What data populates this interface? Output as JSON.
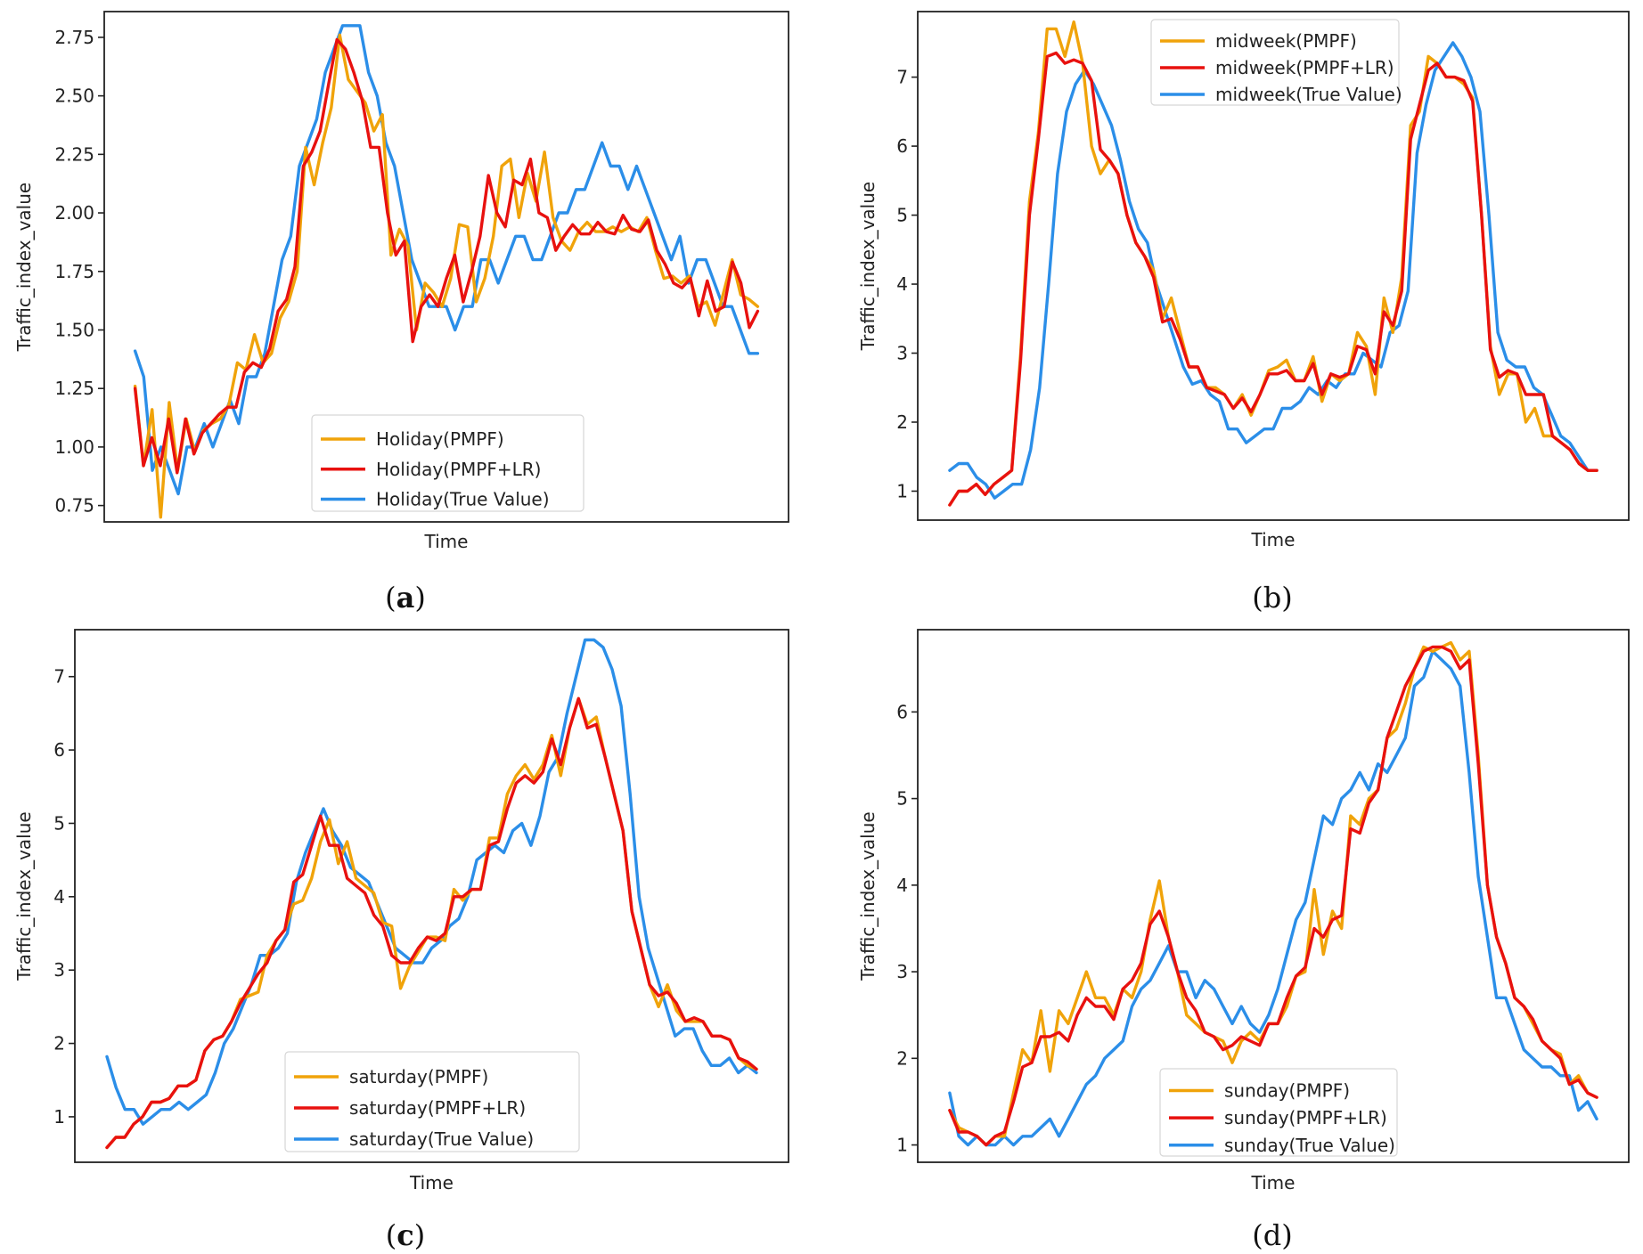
{
  "chart_data": [
    {
      "type": "line",
      "panel": "a",
      "caption": "(a)",
      "caption_letter": "a",
      "caption_bold": true,
      "xlabel": "Time",
      "ylabel": "Traffic_index_value",
      "ylim": [
        0.68,
        2.86
      ],
      "yticks": [
        0.75,
        1.0,
        1.25,
        1.5,
        1.75,
        2.0,
        2.25,
        2.5,
        2.75
      ],
      "ytick_labels": [
        "0.75",
        "1.00",
        "1.25",
        "1.50",
        "1.75",
        "2.00",
        "2.25",
        "2.50",
        "2.75"
      ],
      "legend_position": "lower-center",
      "series": [
        {
          "name": "Holiday(PMPF)",
          "color": "#f0a30a",
          "values": [
            1.26,
            0.92,
            1.16,
            0.7,
            1.19,
            0.9,
            1.12,
            0.98,
            1.07,
            1.1,
            1.12,
            1.18,
            1.36,
            1.33,
            1.48,
            1.36,
            1.4,
            1.55,
            1.62,
            1.75,
            2.28,
            2.12,
            2.3,
            2.45,
            2.76,
            2.57,
            2.52,
            2.47,
            2.35,
            2.42,
            1.82,
            1.93,
            1.86,
            1.5,
            1.7,
            1.66,
            1.6,
            1.72,
            1.95,
            1.94,
            1.62,
            1.72,
            1.9,
            2.2,
            2.23,
            1.98,
            2.17,
            2.05,
            2.26,
            1.98,
            1.88,
            1.84,
            1.92,
            1.96,
            1.92,
            1.92,
            1.94,
            1.92,
            1.94,
            1.92,
            1.98,
            1.84,
            1.72,
            1.73,
            1.7,
            1.73,
            1.6,
            1.62,
            1.52,
            1.66,
            1.8,
            1.65,
            1.63,
            1.6
          ]
        },
        {
          "name": "Holiday(PMPF+LR)",
          "color": "#e8110f",
          "values": [
            1.25,
            0.92,
            1.04,
            0.92,
            1.12,
            0.89,
            1.12,
            0.97,
            1.06,
            1.1,
            1.14,
            1.17,
            1.17,
            1.32,
            1.36,
            1.34,
            1.42,
            1.58,
            1.63,
            1.77,
            2.2,
            2.26,
            2.35,
            2.55,
            2.74,
            2.7,
            2.6,
            2.48,
            2.28,
            2.28,
            2.0,
            1.82,
            1.88,
            1.45,
            1.6,
            1.65,
            1.6,
            1.72,
            1.82,
            1.62,
            1.75,
            1.9,
            2.16,
            2.0,
            1.94,
            2.14,
            2.12,
            2.23,
            2.0,
            1.98,
            1.84,
            1.9,
            1.95,
            1.91,
            1.91,
            1.96,
            1.92,
            1.91,
            1.99,
            1.93,
            1.92,
            1.97,
            1.84,
            1.78,
            1.7,
            1.68,
            1.72,
            1.56,
            1.71,
            1.58,
            1.6,
            1.79,
            1.7,
            1.51,
            1.58
          ]
        },
        {
          "name": "Holiday(True Value)",
          "color": "#2b8ee8",
          "values": [
            1.41,
            1.3,
            0.9,
            1.0,
            0.9,
            0.8,
            1.0,
            1.0,
            1.1,
            1.0,
            1.1,
            1.2,
            1.1,
            1.3,
            1.3,
            1.4,
            1.6,
            1.8,
            1.9,
            2.2,
            2.3,
            2.4,
            2.6,
            2.7,
            2.8,
            2.8,
            2.8,
            2.6,
            2.5,
            2.3,
            2.2,
            2.0,
            1.8,
            1.7,
            1.6,
            1.6,
            1.6,
            1.5,
            1.6,
            1.6,
            1.8,
            1.8,
            1.7,
            1.8,
            1.9,
            1.9,
            1.8,
            1.8,
            1.9,
            2.0,
            2.0,
            2.1,
            2.1,
            2.2,
            2.3,
            2.2,
            2.2,
            2.1,
            2.2,
            2.1,
            2.0,
            1.9,
            1.8,
            1.9,
            1.7,
            1.8,
            1.8,
            1.7,
            1.6,
            1.6,
            1.5,
            1.4,
            1.4
          ]
        }
      ]
    },
    {
      "type": "line",
      "panel": "b",
      "caption": "(b)",
      "caption_letter": "b",
      "caption_bold": false,
      "xlabel": "Time",
      "ylabel": "Traffic_index_value",
      "ylim": [
        0.58,
        7.95
      ],
      "yticks": [
        1,
        2,
        3,
        4,
        5,
        6,
        7
      ],
      "ytick_labels": [
        "1",
        "2",
        "3",
        "4",
        "5",
        "6",
        "7"
      ],
      "legend_position": "upper-center",
      "series": [
        {
          "name": "midweek(PMPF)",
          "color": "#f0a30a",
          "values": [
            0.8,
            1.0,
            1.0,
            1.1,
            0.95,
            1.1,
            1.2,
            1.3,
            3.0,
            5.2,
            6.2,
            7.7,
            7.7,
            7.3,
            7.8,
            7.2,
            6.0,
            5.6,
            5.8,
            5.6,
            5.0,
            4.6,
            4.4,
            4.2,
            3.5,
            3.8,
            3.3,
            2.8,
            2.8,
            2.5,
            2.5,
            2.4,
            2.2,
            2.4,
            2.1,
            2.4,
            2.75,
            2.8,
            2.9,
            2.6,
            2.6,
            2.95,
            2.3,
            2.7,
            2.6,
            2.7,
            3.3,
            3.1,
            2.4,
            3.8,
            3.3,
            4.1,
            6.3,
            6.5,
            7.3,
            7.2,
            7.0,
            7.0,
            6.9,
            6.7,
            5.0,
            3.1,
            2.4,
            2.7,
            2.7,
            2.0,
            2.2,
            1.8,
            1.8,
            1.7,
            1.6,
            1.4,
            1.3,
            1.3
          ]
        },
        {
          "name": "midweek(PMPF+LR)",
          "color": "#e8110f",
          "values": [
            0.8,
            1.0,
            1.0,
            1.1,
            0.95,
            1.1,
            1.2,
            1.3,
            2.9,
            5.0,
            6.1,
            7.3,
            7.35,
            7.2,
            7.25,
            7.2,
            6.95,
            5.95,
            5.8,
            5.6,
            5.0,
            4.6,
            4.4,
            4.1,
            3.45,
            3.5,
            3.2,
            2.8,
            2.8,
            2.5,
            2.45,
            2.4,
            2.2,
            2.35,
            2.15,
            2.4,
            2.7,
            2.7,
            2.75,
            2.6,
            2.6,
            2.85,
            2.4,
            2.7,
            2.65,
            2.7,
            3.1,
            3.05,
            2.7,
            3.6,
            3.4,
            3.9,
            6.1,
            6.6,
            7.1,
            7.2,
            7.0,
            7.0,
            6.95,
            6.65,
            5.0,
            3.05,
            2.65,
            2.75,
            2.7,
            2.4,
            2.4,
            2.4,
            1.8,
            1.7,
            1.6,
            1.4,
            1.3,
            1.3
          ]
        },
        {
          "name": "midweek(True Value)",
          "color": "#2b8ee8",
          "values": [
            1.3,
            1.4,
            1.4,
            1.2,
            1.1,
            0.9,
            1.0,
            1.1,
            1.1,
            1.6,
            2.5,
            4.0,
            5.6,
            6.5,
            6.9,
            7.1,
            6.9,
            6.6,
            6.3,
            5.8,
            5.2,
            4.8,
            4.6,
            4.0,
            3.6,
            3.2,
            2.8,
            2.55,
            2.6,
            2.4,
            2.3,
            1.9,
            1.9,
            1.7,
            1.8,
            1.9,
            1.9,
            2.2,
            2.2,
            2.3,
            2.5,
            2.4,
            2.6,
            2.5,
            2.7,
            2.7,
            3.0,
            2.9,
            2.8,
            3.3,
            3.4,
            3.9,
            5.9,
            6.6,
            7.1,
            7.3,
            7.5,
            7.3,
            7.0,
            6.5,
            5.0,
            3.3,
            2.9,
            2.8,
            2.8,
            2.5,
            2.4,
            2.1,
            1.8,
            1.7,
            1.5,
            1.3,
            1.3
          ]
        }
      ]
    },
    {
      "type": "line",
      "panel": "c",
      "caption": "(c)",
      "caption_letter": "c",
      "caption_bold": true,
      "xlabel": "Time",
      "ylabel": "Traffic_index_value",
      "ylim": [
        0.38,
        7.64
      ],
      "yticks": [
        1,
        2,
        3,
        4,
        5,
        6,
        7
      ],
      "ytick_labels": [
        "1",
        "2",
        "3",
        "4",
        "5",
        "6",
        "7"
      ],
      "legend_position": "lower-center",
      "series": [
        {
          "name": "saturday(PMPF)",
          "color": "#f0a30a",
          "values": [
            0.58,
            0.72,
            0.72,
            0.9,
            1.0,
            1.2,
            1.2,
            1.25,
            1.42,
            1.42,
            1.5,
            1.9,
            2.05,
            2.1,
            2.3,
            2.6,
            2.65,
            2.7,
            3.2,
            3.4,
            3.55,
            3.9,
            3.95,
            4.25,
            4.75,
            5.05,
            4.45,
            4.75,
            4.25,
            4.15,
            4.05,
            3.65,
            3.6,
            2.75,
            3.05,
            3.25,
            3.45,
            3.45,
            3.4,
            4.1,
            3.95,
            4.1,
            4.1,
            4.8,
            4.8,
            5.4,
            5.65,
            5.8,
            5.6,
            5.8,
            6.2,
            5.65,
            6.3,
            6.7,
            6.35,
            6.45,
            5.9,
            5.4,
            4.9,
            3.8,
            3.3,
            2.8,
            2.5,
            2.8,
            2.45,
            2.3,
            2.3,
            2.3,
            2.1,
            2.1,
            2.05,
            1.8,
            1.7,
            1.65
          ]
        },
        {
          "name": "saturday(PMPF+LR)",
          "color": "#e8110f",
          "values": [
            0.58,
            0.72,
            0.72,
            0.9,
            1.0,
            1.2,
            1.2,
            1.25,
            1.42,
            1.42,
            1.5,
            1.9,
            2.05,
            2.1,
            2.3,
            2.55,
            2.75,
            2.95,
            3.1,
            3.4,
            3.55,
            4.2,
            4.3,
            4.7,
            5.1,
            4.7,
            4.7,
            4.25,
            4.15,
            4.05,
            3.75,
            3.6,
            3.2,
            3.1,
            3.1,
            3.3,
            3.45,
            3.4,
            3.5,
            4.0,
            4.0,
            4.1,
            4.1,
            4.7,
            4.75,
            5.2,
            5.55,
            5.65,
            5.55,
            5.7,
            6.15,
            5.8,
            6.3,
            6.7,
            6.3,
            6.35,
            5.9,
            5.4,
            4.9,
            3.8,
            3.3,
            2.8,
            2.65,
            2.7,
            2.55,
            2.3,
            2.35,
            2.3,
            2.1,
            2.1,
            2.05,
            1.8,
            1.75,
            1.65
          ]
        },
        {
          "name": "saturday(True Value)",
          "color": "#2b8ee8",
          "values": [
            1.82,
            1.4,
            1.1,
            1.1,
            0.9,
            1.0,
            1.1,
            1.1,
            1.2,
            1.1,
            1.2,
            1.3,
            1.6,
            2.0,
            2.2,
            2.5,
            2.8,
            3.2,
            3.2,
            3.3,
            3.5,
            4.2,
            4.6,
            4.9,
            5.2,
            4.9,
            4.7,
            4.4,
            4.3,
            4.2,
            3.9,
            3.6,
            3.3,
            3.2,
            3.1,
            3.1,
            3.3,
            3.4,
            3.6,
            3.7,
            4.0,
            4.5,
            4.6,
            4.7,
            4.6,
            4.9,
            5.0,
            4.7,
            5.1,
            5.7,
            5.9,
            6.5,
            7.0,
            7.5,
            7.5,
            7.4,
            7.1,
            6.6,
            5.4,
            4.0,
            3.3,
            2.9,
            2.5,
            2.1,
            2.2,
            2.2,
            1.9,
            1.7,
            1.7,
            1.8,
            1.6,
            1.7,
            1.6
          ]
        }
      ]
    },
    {
      "type": "line",
      "panel": "d",
      "caption": "(d)",
      "caption_letter": "d",
      "caption_bold": false,
      "xlabel": "Time",
      "ylabel": "Traffic_index_value",
      "ylim": [
        0.8,
        6.95
      ],
      "yticks": [
        1,
        2,
        3,
        4,
        5,
        6
      ],
      "ytick_labels": [
        "1",
        "2",
        "3",
        "4",
        "5",
        "6"
      ],
      "legend_position": "lower-center",
      "series": [
        {
          "name": "sunday(PMPF)",
          "color": "#f0a30a",
          "values": [
            1.4,
            1.2,
            1.15,
            1.1,
            1.0,
            1.1,
            1.1,
            1.6,
            2.1,
            1.95,
            2.55,
            1.85,
            2.55,
            2.4,
            2.7,
            3.0,
            2.7,
            2.7,
            2.5,
            2.8,
            2.7,
            3.0,
            3.6,
            4.05,
            3.4,
            3.0,
            2.5,
            2.4,
            2.3,
            2.25,
            2.2,
            1.95,
            2.2,
            2.3,
            2.2,
            2.4,
            2.4,
            2.6,
            2.95,
            3.0,
            3.95,
            3.2,
            3.7,
            3.5,
            4.8,
            4.7,
            5.0,
            5.1,
            5.7,
            5.8,
            6.1,
            6.5,
            6.75,
            6.7,
            6.75,
            6.8,
            6.6,
            6.7,
            5.5,
            4.0,
            3.4,
            3.1,
            2.7,
            2.6,
            2.4,
            2.2,
            2.1,
            2.05,
            1.7,
            1.8,
            1.6,
            1.55
          ]
        },
        {
          "name": "sunday(PMPF+LR)",
          "color": "#e8110f",
          "values": [
            1.4,
            1.15,
            1.15,
            1.1,
            1.0,
            1.1,
            1.15,
            1.5,
            1.9,
            1.95,
            2.25,
            2.25,
            2.3,
            2.2,
            2.5,
            2.7,
            2.6,
            2.6,
            2.45,
            2.8,
            2.9,
            3.1,
            3.55,
            3.7,
            3.4,
            3.0,
            2.7,
            2.55,
            2.3,
            2.25,
            2.1,
            2.15,
            2.25,
            2.2,
            2.15,
            2.4,
            2.4,
            2.7,
            2.95,
            3.05,
            3.5,
            3.4,
            3.6,
            3.65,
            4.65,
            4.6,
            4.95,
            5.1,
            5.7,
            6.0,
            6.3,
            6.5,
            6.7,
            6.75,
            6.75,
            6.7,
            6.5,
            6.6,
            5.4,
            4.0,
            3.4,
            3.1,
            2.7,
            2.6,
            2.45,
            2.2,
            2.1,
            2.0,
            1.7,
            1.75,
            1.6,
            1.55
          ]
        },
        {
          "name": "sunday(True Value)",
          "color": "#2b8ee8",
          "values": [
            1.6,
            1.1,
            1.0,
            1.1,
            1.0,
            1.0,
            1.1,
            1.0,
            1.1,
            1.1,
            1.2,
            1.3,
            1.1,
            1.3,
            1.5,
            1.7,
            1.8,
            2.0,
            2.1,
            2.2,
            2.6,
            2.8,
            2.9,
            3.1,
            3.3,
            3.0,
            3.0,
            2.7,
            2.9,
            2.8,
            2.6,
            2.4,
            2.6,
            2.4,
            2.3,
            2.5,
            2.8,
            3.2,
            3.6,
            3.8,
            4.3,
            4.8,
            4.7,
            5.0,
            5.1,
            5.3,
            5.1,
            5.4,
            5.3,
            5.5,
            5.7,
            6.3,
            6.4,
            6.7,
            6.6,
            6.5,
            6.3,
            5.3,
            4.1,
            3.4,
            2.7,
            2.7,
            2.4,
            2.1,
            2.0,
            1.9,
            1.9,
            1.8,
            1.8,
            1.4,
            1.5,
            1.3
          ]
        }
      ]
    }
  ]
}
